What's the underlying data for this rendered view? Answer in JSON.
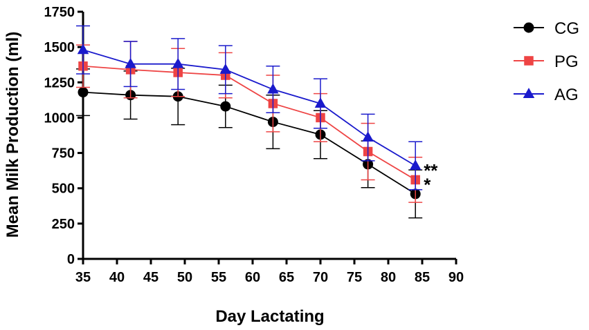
{
  "chart_data": {
    "type": "line",
    "title": "",
    "xlabel": "Day Lactating",
    "ylabel": "Mean Milk Production (ml)",
    "xlim": [
      35,
      90
    ],
    "ylim": [
      0,
      1750
    ],
    "xticks": [
      35,
      40,
      45,
      50,
      55,
      60,
      65,
      70,
      75,
      80,
      85,
      90
    ],
    "yticks": [
      0,
      250,
      500,
      750,
      1000,
      1250,
      1500,
      1750
    ],
    "grid": false,
    "legend_position": "top-right",
    "x": [
      35,
      42,
      49,
      56,
      63,
      70,
      77,
      84
    ],
    "series": [
      {
        "name": "CG",
        "color": "#000000",
        "marker": "circle",
        "values": [
          1180,
          1160,
          1150,
          1080,
          970,
          880,
          670,
          460
        ],
        "error": [
          165,
          170,
          200,
          150,
          190,
          170,
          165,
          170
        ]
      },
      {
        "name": "PG",
        "color": "#ee4444",
        "marker": "square",
        "values": [
          1365,
          1340,
          1320,
          1300,
          1100,
          1000,
          760,
          560
        ],
        "error": [
          150,
          200,
          170,
          160,
          200,
          170,
          200,
          160
        ]
      },
      {
        "name": "AG",
        "color": "#1a1acc",
        "marker": "triangle",
        "values": [
          1480,
          1380,
          1380,
          1340,
          1200,
          1100,
          860,
          660
        ],
        "error": [
          170,
          160,
          180,
          170,
          165,
          175,
          165,
          170
        ]
      }
    ],
    "annotations": [
      {
        "text": "**",
        "series": "AG",
        "x": 84
      },
      {
        "text": "*",
        "series": "PG",
        "x": 84
      }
    ]
  }
}
